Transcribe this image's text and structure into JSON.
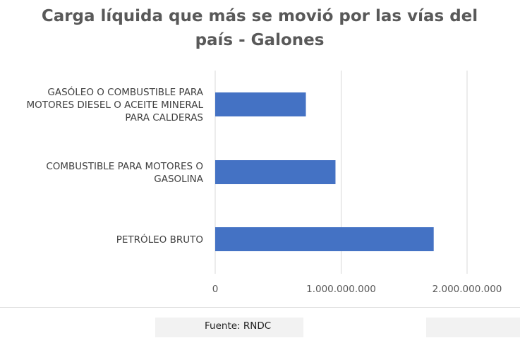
{
  "chart_data": {
    "type": "bar",
    "orientation": "horizontal",
    "title_lines": [
      "Carga líquida que más se movió por las vías del",
      "país - Galones"
    ],
    "categories": [
      [
        "GASÓLEO O COMBUSTIBLE PARA",
        "MOTORES DIESEL O ACEITE MINERAL",
        "PARA CALDERAS"
      ],
      [
        "COMBUSTIBLE PARA MOTORES O",
        "GASOLINA"
      ],
      [
        "PETRÓLEO BRUTO"
      ]
    ],
    "values": [
      720000000,
      955000000,
      1735000000
    ],
    "xlim": [
      0,
      2000000000
    ],
    "xticks": [
      0,
      1000000000,
      2000000000
    ],
    "xtick_labels": [
      "0",
      "1.000.000.000",
      "2.000.000.000"
    ],
    "bar_color": "#4472c4",
    "grid": true,
    "legend": "none"
  },
  "source": {
    "text": "Fuente: RNDC"
  }
}
